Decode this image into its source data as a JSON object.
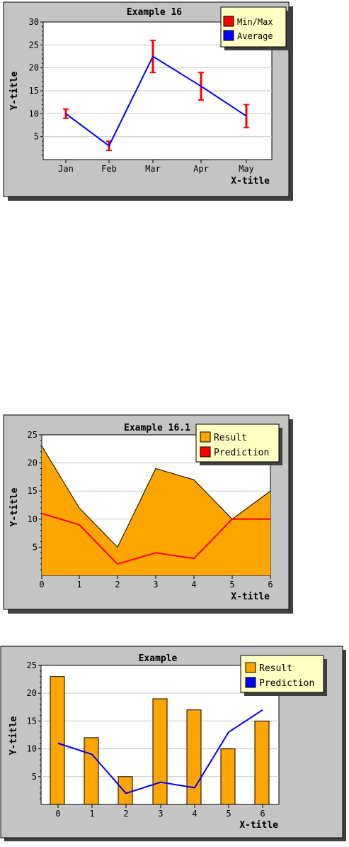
{
  "colors": {
    "panel": "#c4c4c4",
    "plot_bg": "#ffffff",
    "grid": "#c8c8c8",
    "legend_bg": "#ffffc4",
    "shadow": "#404040",
    "red": "#ff0000",
    "blue": "#0000ff",
    "orange": "#ffa500",
    "black": "#000000"
  },
  "chart_data": [
    {
      "type": "line",
      "title": "Example 16",
      "xlabel": "X-title",
      "ylabel": "Y-title",
      "categories": [
        "Jan",
        "Feb",
        "Mar",
        "Apr",
        "May"
      ],
      "ylim": [
        0,
        30
      ],
      "yticks": [
        5,
        10,
        15,
        20,
        25,
        30
      ],
      "series": [
        {
          "name": "Average",
          "kind": "line",
          "color": "#0000ff",
          "values": [
            10,
            3,
            22.5,
            16,
            9.5
          ]
        },
        {
          "name": "Min/Max",
          "kind": "errorbar",
          "color": "#ff0000",
          "min": [
            9,
            2,
            19,
            13,
            7
          ],
          "max": [
            11,
            4,
            26,
            19,
            12
          ]
        }
      ],
      "legend": {
        "position": "top-right",
        "entries": [
          {
            "label": "Min/Max",
            "color": "#ff0000"
          },
          {
            "label": "Average",
            "color": "#0000ff"
          }
        ]
      },
      "grid": true
    },
    {
      "type": "area",
      "title": "Example 16.1",
      "xlabel": "X-title",
      "ylabel": "Y-title",
      "x": [
        0,
        1,
        2,
        3,
        4,
        5,
        6
      ],
      "ylim": [
        0,
        25
      ],
      "yticks": [
        5,
        10,
        15,
        20,
        25
      ],
      "series": [
        {
          "name": "Result",
          "kind": "area",
          "color": "#ffa500",
          "values": [
            23,
            12,
            5,
            19,
            17,
            10,
            15
          ]
        },
        {
          "name": "Prediction",
          "kind": "line",
          "color": "#ff0000",
          "values": [
            11,
            9,
            2,
            4,
            3,
            10,
            10
          ]
        }
      ],
      "legend": {
        "position": "top-right",
        "entries": [
          {
            "label": "Result",
            "color": "#ffa500"
          },
          {
            "label": "Prediction",
            "color": "#ff0000"
          }
        ]
      },
      "grid": true
    },
    {
      "type": "bar",
      "title": "Example",
      "xlabel": "X-title",
      "ylabel": "Y-title",
      "categories": [
        "0",
        "1",
        "2",
        "3",
        "4",
        "5",
        "6"
      ],
      "ylim": [
        0,
        25
      ],
      "yticks": [
        5,
        10,
        15,
        20,
        25
      ],
      "series": [
        {
          "name": "Result",
          "kind": "bar",
          "color": "#ffa500",
          "values": [
            23,
            12,
            5,
            19,
            17,
            10,
            15
          ]
        },
        {
          "name": "Prediction",
          "kind": "line",
          "color": "#0000ff",
          "values": [
            11,
            9,
            2,
            4,
            3,
            13,
            17
          ]
        }
      ],
      "legend": {
        "position": "top-right",
        "entries": [
          {
            "label": "Result",
            "color": "#ffa500"
          },
          {
            "label": "Prediction",
            "color": "#0000ff"
          }
        ]
      },
      "grid": true
    }
  ]
}
